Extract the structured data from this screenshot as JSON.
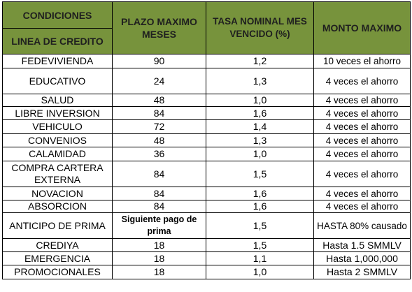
{
  "headers": {
    "condiciones": "CONDICIONES",
    "linea": "LINEA DE CREDITO",
    "plazo": "PLAZO MAXIMO MESES",
    "tasa": "TASA NOMINAL MES VENCIDO (%)",
    "monto": "MONTO MAXIMO"
  },
  "rows": [
    {
      "linea": "FEDEVIVIENDA",
      "plazo": "90",
      "tasa": "1,2",
      "monto": "10 veces el ahorro"
    },
    {
      "linea": "EDUCATIVO",
      "plazo": "24",
      "tasa": "1,3",
      "monto": "4 veces el ahorro"
    },
    {
      "linea": "SALUD",
      "plazo": "48",
      "tasa": "1,0",
      "monto": "4 veces el ahorro"
    },
    {
      "linea": "LIBRE INVERSION",
      "plazo": "84",
      "tasa": "1,6",
      "monto": "4 veces el ahorro"
    },
    {
      "linea": "VEHICULO",
      "plazo": "72",
      "tasa": "1,4",
      "monto": "4 veces el ahorro"
    },
    {
      "linea": "CONVENIOS",
      "plazo": "48",
      "tasa": "1,3",
      "monto": "4 veces el ahorro"
    },
    {
      "linea": "CALAMIDAD",
      "plazo": "36",
      "tasa": "1,0",
      "monto": "4 veces el ahorro"
    },
    {
      "linea": "COMPRA CARTERA EXTERNA",
      "plazo": "84",
      "tasa": "1,5",
      "monto": "4 veces el ahorro"
    },
    {
      "linea": "NOVACION",
      "plazo": "84",
      "tasa": "1,6",
      "monto": "4 veces el ahorro"
    },
    {
      "linea": "ABSORCION",
      "plazo": "84",
      "tasa": "1,6",
      "monto": "4 veces el ahorro"
    },
    {
      "linea": "ANTICIPO DE PRIMA",
      "plazo": "Siguiente pago de prima",
      "tasa": "1,5",
      "monto": "HASTA 80% causado"
    },
    {
      "linea": "CREDIYA",
      "plazo": "18",
      "tasa": "1,5",
      "monto": "Hasta 1.5 SMMLV"
    },
    {
      "linea": "EMERGENCIA",
      "plazo": "18",
      "tasa": "1,1",
      "monto": "Hasta 1,000,000"
    },
    {
      "linea": "PROMOCIONALES",
      "plazo": "18",
      "tasa": "1,0",
      "monto": "Hasta 2 SMMLV"
    }
  ]
}
